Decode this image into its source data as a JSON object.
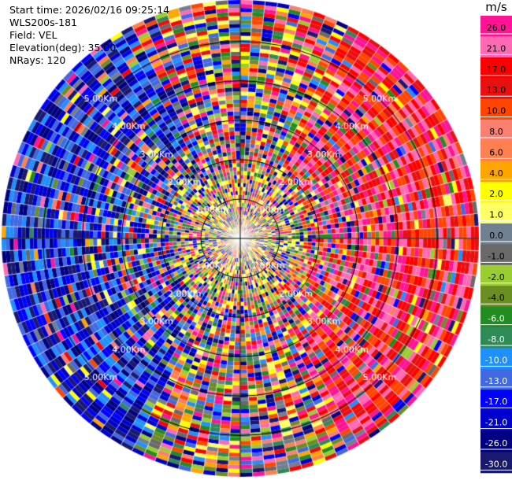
{
  "info": {
    "start_time": "Start time: 2026/02/16 09:25:14",
    "instrument": "WLS200s-181",
    "field": "Field: VEL",
    "elevation": "Elevation(deg): 35.00",
    "nrays": "NRays: 120"
  },
  "colorbar": {
    "unit": "m/s",
    "ticks": [
      "26.0",
      "21.0",
      "17.0",
      "13.0",
      "10.0",
      "8.0",
      "6.0",
      "4.0",
      "2.0",
      "1.0",
      "0.0",
      "-1.0",
      "-2.0",
      "-4.0",
      "-6.0",
      "-8.0",
      "-10.0",
      "-13.0",
      "-17.0",
      "-21.0",
      "-26.0",
      "-30.0"
    ],
    "colors": [
      "#ff1493",
      "#ff69b4",
      "#ff0000",
      "#e81010",
      "#ff4500",
      "#fa8072",
      "#ff7f50",
      "#ffa500",
      "#ffff00",
      "#ffff66",
      "#708090",
      "#696969",
      "#9acd32",
      "#6b8e23",
      "#228b22",
      "#2e8b57",
      "#1e90ff",
      "#4169e1",
      "#0000ff",
      "#0000cd",
      "#000080",
      "#191970"
    ]
  },
  "chart_data": {
    "type": "heatmap",
    "projection": "polar (PPI)",
    "field": "VEL",
    "units": "m/s",
    "nrays": 120,
    "elevation_deg": 35.0,
    "range_rings_km": [
      1.0,
      2.0,
      3.0,
      4.0,
      5.0
    ],
    "range_ring_labels": [
      "1.00Km",
      "2.00Km",
      "3.00Km",
      "4.00Km",
      "5.00Km"
    ],
    "vmin": -30.0,
    "vmax": 26.0,
    "dominant_pattern": [
      {
        "sector": "west",
        "velocity_range_m_s": [
          -30,
          -13
        ]
      },
      {
        "sector": "east",
        "velocity_range_m_s": [
          13,
          26
        ]
      }
    ]
  }
}
